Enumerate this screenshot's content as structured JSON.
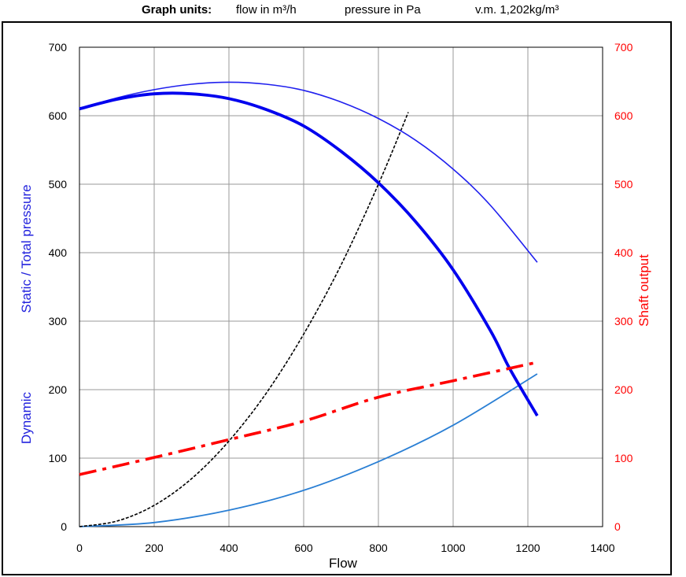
{
  "header": {
    "units_label": "Graph units:",
    "flow_units": "flow in m³/h",
    "pressure_units": "pressure in Pa",
    "density": "v.m. 1,202kg/m³"
  },
  "colors": {
    "static_curve": "#0000ee",
    "total_curve": "#2020ee",
    "dynamic_curve": "#2a7fd4",
    "system_curve": "#000000",
    "shaft_curve": "#ff0000",
    "left_axis_title": "#2222dd",
    "right_axis": "#ff0000"
  },
  "chart_data": {
    "type": "line",
    "title": "",
    "xlabel": "Flow",
    "ylabel_left_upper": "Static / Total pressure",
    "ylabel_left_lower": "Dynamic",
    "ylabel_right": "Shaft output",
    "xlim": [
      0,
      1400
    ],
    "ylim": [
      0,
      700
    ],
    "ylim_right": [
      0,
      700
    ],
    "x_ticks": [
      "0",
      "200",
      "400",
      "600",
      "800",
      "1000",
      "1200",
      "1400"
    ],
    "y_ticks": [
      "0",
      "100",
      "200",
      "300",
      "400",
      "500",
      "600",
      "700"
    ],
    "y_ticks_right": [
      "0",
      "100",
      "200",
      "300",
      "400",
      "500",
      "600",
      "700"
    ],
    "grid": true,
    "series": [
      {
        "key": "total",
        "x": [
          0,
          100,
          200,
          300,
          400,
          500,
          600,
          700,
          800,
          900,
          1000,
          1100,
          1225
        ],
        "y": [
          610,
          626,
          638,
          646,
          649,
          646,
          637,
          620,
          596,
          564,
          522,
          469,
          386
        ]
      },
      {
        "key": "static",
        "x": [
          0,
          100,
          200,
          300,
          400,
          500,
          600,
          700,
          800,
          900,
          1000,
          1100,
          1150,
          1225
        ],
        "y": [
          610,
          624,
          632,
          632,
          625,
          609,
          585,
          548,
          502,
          445,
          375,
          286,
          232,
          162
        ]
      },
      {
        "key": "dynamic",
        "x": [
          0,
          200,
          400,
          600,
          800,
          1000,
          1225
        ],
        "y": [
          0,
          6,
          24,
          53,
          95,
          148,
          223
        ]
      },
      {
        "key": "system",
        "x": [
          0,
          100,
          200,
          300,
          400,
          500,
          600,
          700,
          800,
          880
        ],
        "y": [
          0,
          8,
          31,
          70,
          125,
          195,
          281,
          382,
          500,
          605
        ]
      },
      {
        "key": "shaft",
        "axis": "right",
        "x": [
          0,
          200,
          400,
          600,
          800,
          1000,
          1225
        ],
        "y": [
          76,
          101,
          127,
          154,
          189,
          213,
          240
        ]
      }
    ]
  }
}
